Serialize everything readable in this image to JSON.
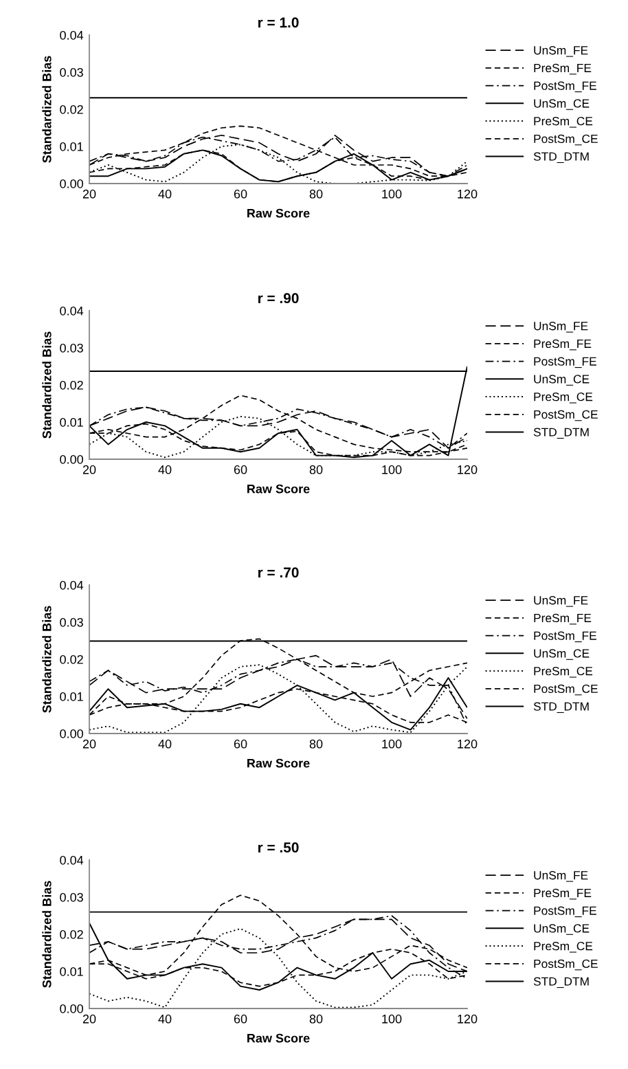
{
  "chart_data": [
    {
      "type": "line",
      "title": "r = 1.0",
      "xlabel": "Raw Score",
      "ylabel": "Standardized Bias",
      "x": [
        20,
        25,
        30,
        35,
        40,
        45,
        50,
        55,
        60,
        65,
        70,
        75,
        80,
        85,
        90,
        95,
        100,
        105,
        110,
        115,
        120
      ],
      "xlim": [
        20,
        120
      ],
      "xticks": [
        20,
        40,
        60,
        80,
        100,
        120
      ],
      "ylim": [
        0,
        0.04
      ],
      "yticks": [
        {
          "value": 0,
          "label": "0.00"
        },
        {
          "value": 0.01,
          "label": "0.01"
        },
        {
          "value": 0.02,
          "label": "0.02"
        },
        {
          "value": 0.03,
          "label": "0.03"
        },
        {
          "value": 0.04,
          "label": "0.04"
        }
      ],
      "legend": "right",
      "grid": false,
      "series": [
        {
          "name": "UnSm_FE",
          "color": "#000000",
          "line_style": "long dashed",
          "values": [
            0.005,
            0.008,
            0.007,
            0.006,
            0.007,
            0.01,
            0.012,
            0.013,
            0.012,
            0.011,
            0.008,
            0.006,
            0.008,
            0.013,
            0.009,
            0.006,
            0.007,
            0.007,
            0.003,
            0.002,
            0.004
          ]
        },
        {
          "name": "PreSm_FE",
          "color": "#000000",
          "line_style": "dashed",
          "values": [
            0.005,
            0.007,
            0.008,
            0.0085,
            0.009,
            0.011,
            0.0135,
            0.015,
            0.0155,
            0.015,
            0.013,
            0.011,
            0.009,
            0.007,
            0.005,
            0.005,
            0.005,
            0.004,
            0.002,
            0.002,
            0.004
          ]
        },
        {
          "name": "PostSm_FE",
          "color": "#000000",
          "line_style": "dash-dot",
          "values": [
            0.006,
            0.008,
            0.0075,
            0.006,
            0.0075,
            0.011,
            0.0125,
            0.0115,
            0.0105,
            0.009,
            0.006,
            0.0065,
            0.009,
            0.0125,
            0.007,
            0.0075,
            0.0065,
            0.006,
            0.003,
            0.002,
            0.005
          ]
        },
        {
          "name": "UnSm_CE",
          "color": "#000000",
          "line_style": "solid",
          "values": [
            0.002,
            0.002,
            0.004,
            0.004,
            0.0045,
            0.008,
            0.009,
            0.0075,
            0.004,
            0.001,
            0.0005,
            0.002,
            0.003,
            0.006,
            0.008,
            0.005,
            0.001,
            0.003,
            0.001,
            0.002,
            0.004
          ]
        },
        {
          "name": "PreSm_CE",
          "color": "#000000",
          "line_style": "dotted",
          "values": [
            0.003,
            0.005,
            0.003,
            0.001,
            0.0005,
            0.003,
            0.007,
            0.01,
            0.0105,
            0.009,
            0.007,
            0.003,
            0.0005,
            0,
            0,
            0.0005,
            0.001,
            0.001,
            0.0008,
            0.002,
            0.006
          ]
        },
        {
          "name": "PostSm_CE",
          "color": "#000000",
          "line_style": "dashed",
          "values": [
            0.003,
            0.004,
            0.004,
            0.0045,
            0.005,
            0.008,
            0.009,
            0.008,
            0.004,
            0.001,
            0.0005,
            0.002,
            0.003,
            0.006,
            0.007,
            0.005,
            0.002,
            0.002,
            0.001,
            0.002,
            0.003
          ]
        },
        {
          "name": "STD_DTM",
          "color": "#000000",
          "line_style": "solid",
          "values": [
            0.0231,
            0.0231,
            0.0231,
            0.0231,
            0.0231,
            0.0231,
            0.0231,
            0.0231,
            0.0231,
            0.0231,
            0.0231,
            0.0231,
            0.0231,
            0.0231,
            0.0231,
            0.0231,
            0.0231,
            0.0231,
            0.0231,
            0.0231,
            0.0231
          ]
        }
      ]
    },
    {
      "type": "line",
      "title": "r = .90",
      "xlabel": "Raw Score",
      "ylabel": "Standardized Bias",
      "x": [
        20,
        25,
        30,
        35,
        40,
        45,
        50,
        55,
        60,
        65,
        70,
        75,
        80,
        85,
        90,
        95,
        100,
        105,
        110,
        115,
        120
      ],
      "xlim": [
        20,
        120
      ],
      "xticks": [
        20,
        40,
        60,
        80,
        100,
        120
      ],
      "ylim": [
        0,
        0.04
      ],
      "yticks": [
        {
          "value": 0,
          "label": "0.00"
        },
        {
          "value": 0.01,
          "label": "0.01"
        },
        {
          "value": 0.02,
          "label": "0.02"
        },
        {
          "value": 0.03,
          "label": "0.03"
        },
        {
          "value": 0.04,
          "label": "0.04"
        }
      ],
      "legend": "right",
      "grid": false,
      "series": [
        {
          "name": "UnSm_FE",
          "color": "#000000",
          "line_style": "long dashed",
          "values": [
            0.009,
            0.011,
            0.013,
            0.014,
            0.013,
            0.011,
            0.011,
            0.0105,
            0.009,
            0.009,
            0.01,
            0.012,
            0.013,
            0.011,
            0.01,
            0.008,
            0.006,
            0.007,
            0.008,
            0.003,
            0.006
          ]
        },
        {
          "name": "PreSm_FE",
          "color": "#000000",
          "line_style": "dashed",
          "values": [
            0.007,
            0.008,
            0.007,
            0.006,
            0.006,
            0.008,
            0.011,
            0.0145,
            0.0172,
            0.016,
            0.013,
            0.011,
            0.008,
            0.006,
            0.004,
            0.003,
            0.0025,
            0.002,
            0.002,
            0.002,
            0.004
          ]
        },
        {
          "name": "PostSm_FE",
          "color": "#000000",
          "line_style": "dash-dot",
          "values": [
            0.009,
            0.012,
            0.0135,
            0.014,
            0.0125,
            0.011,
            0.0105,
            0.0105,
            0.009,
            0.01,
            0.011,
            0.0135,
            0.0125,
            0.011,
            0.0095,
            0.008,
            0.006,
            0.008,
            0.006,
            0.003,
            0.007
          ]
        },
        {
          "name": "UnSm_CE",
          "color": "#000000",
          "line_style": "solid",
          "values": [
            0.009,
            0.004,
            0.008,
            0.01,
            0.009,
            0.006,
            0.003,
            0.003,
            0.002,
            0.003,
            0.007,
            0.008,
            0.001,
            0.001,
            0.0005,
            0.001,
            0.005,
            0.001,
            0.004,
            0.001,
            0.025
          ]
        },
        {
          "name": "PreSm_CE",
          "color": "#000000",
          "line_style": "dotted",
          "values": [
            0.004,
            0.007,
            0.006,
            0.002,
            0.0005,
            0.002,
            0.006,
            0.01,
            0.0115,
            0.011,
            0.008,
            0.004,
            0.001,
            0.001,
            0.001,
            0.002,
            0.002,
            0.001,
            0.002,
            0.004,
            0.005
          ]
        },
        {
          "name": "PostSm_CE",
          "color": "#000000",
          "line_style": "dashed",
          "values": [
            0.007,
            0.007,
            0.009,
            0.0095,
            0.008,
            0.005,
            0.0035,
            0.003,
            0.0025,
            0.004,
            0.007,
            0.0075,
            0.002,
            0.001,
            0.001,
            0.001,
            0.002,
            0.001,
            0.001,
            0.002,
            0.003
          ]
        },
        {
          "name": "STD_DTM",
          "color": "#000000",
          "line_style": "solid",
          "values": [
            0.0237,
            0.0237,
            0.0237,
            0.0237,
            0.0237,
            0.0237,
            0.0237,
            0.0237,
            0.0237,
            0.0237,
            0.0237,
            0.0237,
            0.0237,
            0.0237,
            0.0237,
            0.0237,
            0.0237,
            0.0237,
            0.0237,
            0.0237,
            0.0237
          ]
        }
      ]
    },
    {
      "type": "line",
      "title": "r = .70",
      "xlabel": "Raw Score",
      "ylabel": "Standardized Bias",
      "x": [
        20,
        25,
        30,
        35,
        40,
        45,
        50,
        55,
        60,
        65,
        70,
        75,
        80,
        85,
        90,
        95,
        100,
        105,
        110,
        115,
        120
      ],
      "xlim": [
        20,
        120
      ],
      "xticks": [
        20,
        40,
        60,
        80,
        100,
        120
      ],
      "ylim": [
        0,
        0.04
      ],
      "yticks": [
        {
          "value": 0,
          "label": "0.00"
        },
        {
          "value": 0.01,
          "label": "0.01"
        },
        {
          "value": 0.02,
          "label": "0.02"
        },
        {
          "value": 0.03,
          "label": "0.03"
        },
        {
          "value": 0.04,
          "label": "0.04"
        }
      ],
      "legend": "right",
      "grid": false,
      "series": [
        {
          "name": "UnSm_FE",
          "color": "#000000",
          "line_style": "long dashed",
          "values": [
            0.013,
            0.017,
            0.014,
            0.011,
            0.012,
            0.012,
            0.012,
            0.012,
            0.015,
            0.017,
            0.018,
            0.02,
            0.021,
            0.018,
            0.018,
            0.018,
            0.02,
            0.01,
            0.015,
            0.012,
            0.004
          ]
        },
        {
          "name": "PreSm_FE",
          "color": "#000000",
          "line_style": "dashed",
          "values": [
            0.005,
            0.007,
            0.008,
            0.008,
            0.008,
            0.01,
            0.015,
            0.021,
            0.025,
            0.0255,
            0.023,
            0.02,
            0.017,
            0.014,
            0.011,
            0.01,
            0.011,
            0.014,
            0.017,
            0.018,
            0.019
          ]
        },
        {
          "name": "PostSm_FE",
          "color": "#000000",
          "line_style": "dash-dot",
          "values": [
            0.014,
            0.017,
            0.013,
            0.014,
            0.0115,
            0.0125,
            0.011,
            0.013,
            0.016,
            0.017,
            0.019,
            0.02,
            0.018,
            0.018,
            0.019,
            0.018,
            0.019,
            0.015,
            0.013,
            0.013,
            0.002
          ]
        },
        {
          "name": "UnSm_CE",
          "color": "#000000",
          "line_style": "solid",
          "values": [
            0.006,
            0.012,
            0.007,
            0.0075,
            0.008,
            0.006,
            0.006,
            0.0065,
            0.008,
            0.007,
            0.01,
            0.013,
            0.011,
            0.009,
            0.011,
            0.007,
            0.003,
            0.001,
            0.007,
            0.015,
            0.007
          ]
        },
        {
          "name": "PreSm_CE",
          "color": "#000000",
          "line_style": "dotted",
          "values": [
            0.001,
            0.002,
            0.0003,
            0.0003,
            0.0003,
            0.003,
            0.009,
            0.015,
            0.018,
            0.0185,
            0.016,
            0.013,
            0.008,
            0.003,
            0.0005,
            0.002,
            0.001,
            0.0003,
            0.006,
            0.013,
            0.018
          ]
        },
        {
          "name": "PostSm_CE",
          "color": "#000000",
          "line_style": "dashed",
          "values": [
            0.005,
            0.01,
            0.008,
            0.008,
            0.007,
            0.006,
            0.006,
            0.006,
            0.007,
            0.009,
            0.011,
            0.012,
            0.011,
            0.01,
            0.009,
            0.008,
            0.005,
            0.003,
            0.003,
            0.005,
            0.003
          ]
        },
        {
          "name": "STD_DTM",
          "color": "#000000",
          "line_style": "solid",
          "values": [
            0.0249,
            0.0249,
            0.0249,
            0.0249,
            0.0249,
            0.0249,
            0.0249,
            0.0249,
            0.0249,
            0.0249,
            0.0249,
            0.0249,
            0.0249,
            0.0249,
            0.0249,
            0.0249,
            0.0249,
            0.0249,
            0.0249,
            0.0249,
            0.0249
          ]
        }
      ]
    },
    {
      "type": "line",
      "title": "r = .50",
      "xlabel": "Raw Score",
      "ylabel": "Standardized Bias",
      "x": [
        20,
        25,
        30,
        35,
        40,
        45,
        50,
        55,
        60,
        65,
        70,
        75,
        80,
        85,
        90,
        95,
        100,
        105,
        110,
        115,
        120
      ],
      "xlim": [
        20,
        120
      ],
      "xticks": [
        20,
        40,
        60,
        80,
        100,
        120
      ],
      "ylim": [
        0,
        0.04
      ],
      "yticks": [
        {
          "value": 0,
          "label": "0.00"
        },
        {
          "value": 0.01,
          "label": "0.01"
        },
        {
          "value": 0.02,
          "label": "0.02"
        },
        {
          "value": 0.03,
          "label": "0.03"
        },
        {
          "value": 0.04,
          "label": "0.04"
        }
      ],
      "legend": "right",
      "grid": false,
      "series": [
        {
          "name": "UnSm_FE",
          "color": "#000000",
          "line_style": "long dashed",
          "values": [
            0.017,
            0.018,
            0.016,
            0.016,
            0.017,
            0.018,
            0.019,
            0.018,
            0.015,
            0.015,
            0.016,
            0.019,
            0.02,
            0.022,
            0.024,
            0.024,
            0.024,
            0.019,
            0.017,
            0.012,
            0.01
          ]
        },
        {
          "name": "PreSm_FE",
          "color": "#000000",
          "line_style": "dashed",
          "values": [
            0.012,
            0.013,
            0.011,
            0.009,
            0.01,
            0.015,
            0.022,
            0.028,
            0.0305,
            0.029,
            0.025,
            0.02,
            0.014,
            0.011,
            0.01,
            0.011,
            0.014,
            0.017,
            0.016,
            0.013,
            0.011
          ]
        },
        {
          "name": "PostSm_FE",
          "color": "#000000",
          "line_style": "dash-dot",
          "values": [
            0.015,
            0.018,
            0.016,
            0.017,
            0.018,
            0.018,
            0.019,
            0.017,
            0.016,
            0.016,
            0.017,
            0.018,
            0.019,
            0.021,
            0.024,
            0.024,
            0.025,
            0.021,
            0.015,
            0.011,
            0.008
          ]
        },
        {
          "name": "UnSm_CE",
          "color": "#000000",
          "line_style": "solid",
          "values": [
            0.023,
            0.013,
            0.008,
            0.009,
            0.009,
            0.011,
            0.012,
            0.011,
            0.006,
            0.005,
            0.007,
            0.011,
            0.009,
            0.008,
            0.011,
            0.015,
            0.008,
            0.012,
            0.013,
            0.01,
            0.01
          ]
        },
        {
          "name": "PreSm_CE",
          "color": "#000000",
          "line_style": "dotted",
          "values": [
            0.004,
            0.002,
            0.003,
            0.002,
            0.0003,
            0.008,
            0.015,
            0.02,
            0.0215,
            0.019,
            0.014,
            0.007,
            0.002,
            0.0003,
            0.0003,
            0.001,
            0.005,
            0.009,
            0.009,
            0.008,
            0.01
          ]
        },
        {
          "name": "PostSm_CE",
          "color": "#000000",
          "line_style": "dashed",
          "values": [
            0.012,
            0.012,
            0.01,
            0.008,
            0.009,
            0.011,
            0.011,
            0.01,
            0.007,
            0.006,
            0.007,
            0.009,
            0.009,
            0.01,
            0.013,
            0.015,
            0.016,
            0.015,
            0.012,
            0.008,
            0.009
          ]
        },
        {
          "name": "STD_DTM",
          "color": "#000000",
          "line_style": "solid",
          "values": [
            0.026,
            0.026,
            0.026,
            0.026,
            0.026,
            0.026,
            0.026,
            0.026,
            0.026,
            0.026,
            0.026,
            0.026,
            0.026,
            0.026,
            0.026,
            0.026,
            0.026,
            0.026,
            0.026,
            0.026,
            0.026
          ]
        }
      ]
    }
  ]
}
